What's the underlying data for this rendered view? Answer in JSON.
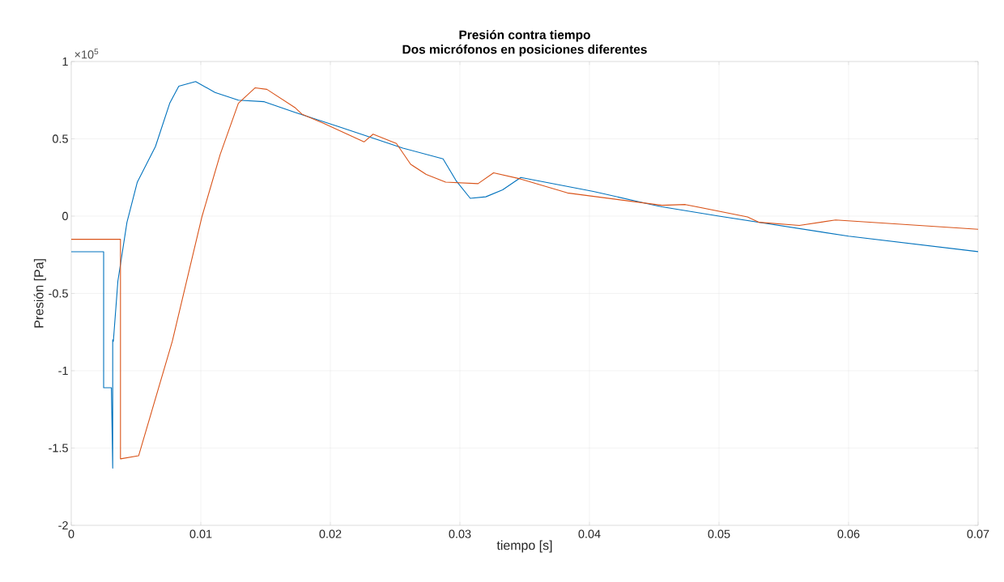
{
  "chart_data": {
    "type": "line",
    "title": "Presión contra tiempo",
    "subtitle": "Dos micrófonos en posiciones diferentes",
    "xlabel": "tiempo [s]",
    "ylabel": "Presión [Pa]",
    "annotations": [
      "×10$^{5}$"
    ],
    "xlim": [
      0,
      0.07
    ],
    "ylim": [
      -2,
      1
    ],
    "xticks": [
      0,
      0.01,
      0.02,
      0.03,
      0.04,
      0.05,
      0.06,
      0.07
    ],
    "yticks": [
      -2,
      -1.5,
      -1,
      -0.5,
      0,
      0.5,
      1
    ],
    "grid": true,
    "line_style": "solid",
    "series": [
      {
        "color": "#0072bd",
        "x": [
          0,
          0.0025,
          0.0025,
          0.0031,
          0.0032,
          0.0032,
          0.00325,
          0.0036,
          0.0043,
          0.0051,
          0.0065,
          0.0076,
          0.0083,
          0.0096,
          0.0111,
          0.0129,
          0.0149,
          0.0173,
          0.0195,
          0.0206,
          0.0256,
          0.0287,
          0.0297,
          0.0308,
          0.032,
          0.0333,
          0.0347,
          0.0403,
          0.0445,
          0.0456,
          0.05,
          0.06,
          0.07
        ],
        "values": [
          -0.23,
          -0.23,
          -1.11,
          -1.11,
          -1.63,
          -0.8,
          -0.81,
          -0.42,
          -0.04,
          0.22,
          0.45,
          0.73,
          0.84,
          0.87,
          0.8,
          0.75,
          0.74,
          0.67,
          0.61,
          0.58,
          0.44,
          0.37,
          0.23,
          0.115,
          0.125,
          0.17,
          0.25,
          0.16,
          0.08,
          0.06,
          0,
          -0.13,
          -0.23
        ]
      },
      {
        "color": "#d95319",
        "x": [
          0,
          0.0038,
          0.0038,
          0.0052,
          0.0078,
          0.0101,
          0.0115,
          0.0129,
          0.0142,
          0.0151,
          0.0173,
          0.0178,
          0.0195,
          0.0226,
          0.0233,
          0.0251,
          0.0262,
          0.0274,
          0.0289,
          0.0314,
          0.0326,
          0.0347,
          0.0383,
          0.0456,
          0.0474,
          0.0522,
          0.0531,
          0.0562,
          0.059,
          0.07
        ],
        "values": [
          -0.15,
          -0.15,
          -1.57,
          -1.55,
          -0.81,
          0,
          0.4,
          0.73,
          0.83,
          0.82,
          0.7,
          0.66,
          0.6,
          0.48,
          0.53,
          0.47,
          0.335,
          0.27,
          0.22,
          0.21,
          0.28,
          0.24,
          0.15,
          0.07,
          0.075,
          -0.005,
          -0.04,
          -0.06,
          -0.025,
          -0.085
        ]
      }
    ]
  }
}
